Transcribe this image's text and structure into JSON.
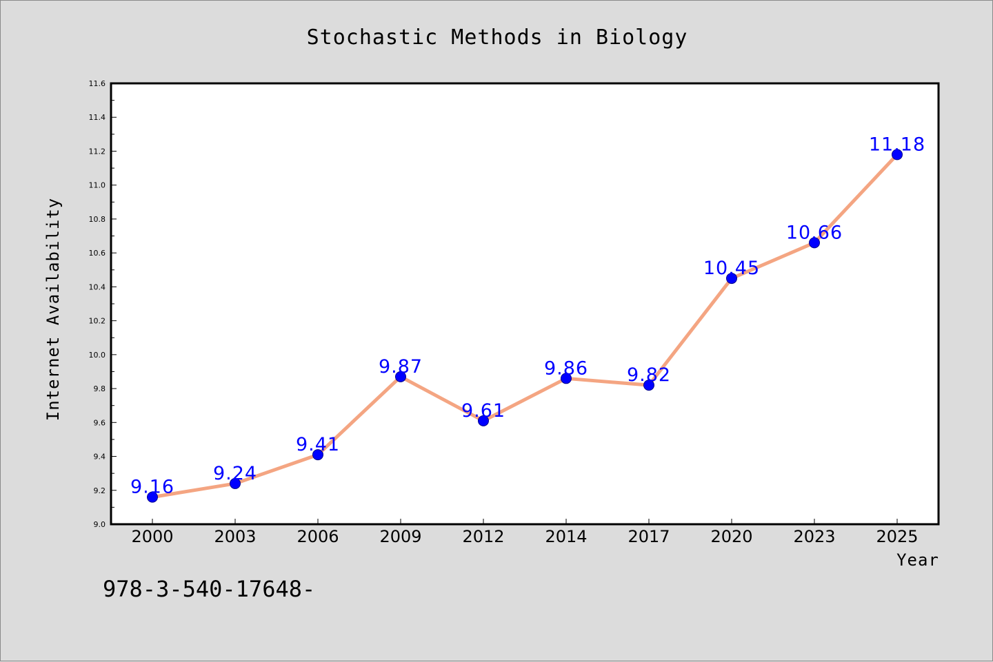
{
  "chart_data": {
    "type": "line",
    "title": "Stochastic Methods in Biology",
    "xlabel": "Year",
    "ylabel": "Internet Availability",
    "categories": [
      "2000",
      "2003",
      "2006",
      "2009",
      "2012",
      "2014",
      "2017",
      "2020",
      "2023",
      "2025"
    ],
    "series": [
      {
        "values": [
          9.16,
          9.24,
          9.41,
          9.87,
          9.61,
          9.86,
          9.82,
          10.45,
          10.66,
          11.18
        ],
        "data_labels": [
          "9.16",
          "9.24",
          "9.41",
          "9.87",
          "9.61",
          "9.86",
          "9.82",
          "10.45",
          "10.66",
          "11.18"
        ],
        "line_color": "#f4a582",
        "marker_color": "#0000ff",
        "label_color": "#0000ff"
      }
    ],
    "ylim": [
      9.0,
      11.6
    ],
    "yticks": [
      9.0,
      9.2,
      9.4,
      9.6,
      9.8,
      10.0,
      10.2,
      10.4,
      10.6,
      10.8,
      11.0,
      11.2,
      11.4,
      11.6
    ],
    "ytick_labels": [
      "9.0",
      "9.2",
      "9.4",
      "9.6",
      "9.8",
      "10.0",
      "10.2",
      "10.4",
      "10.6",
      "10.8",
      "11.0",
      "11.2",
      "11.4",
      "11.6"
    ],
    "grid": false,
    "legend": "none"
  },
  "footer": {
    "text": "978-3-540-17648-"
  },
  "colors": {
    "background": "#dcdcdc",
    "plot_background": "#ffffff",
    "axis": "#000000"
  }
}
